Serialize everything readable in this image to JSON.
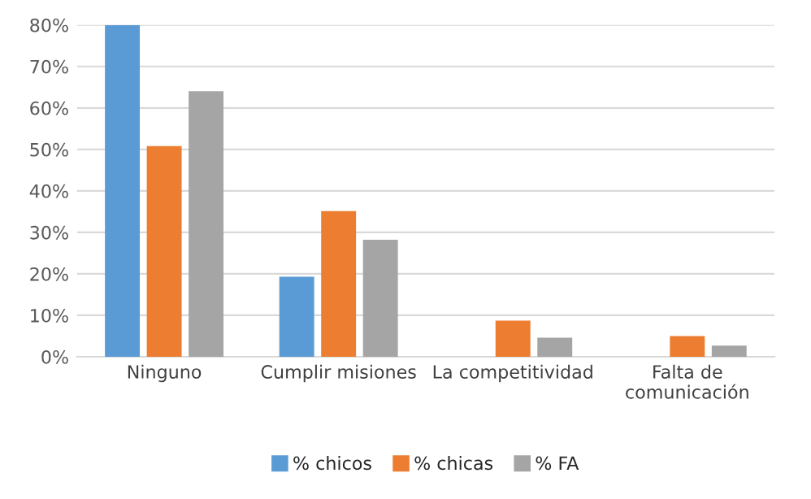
{
  "chart_data": {
    "type": "bar",
    "categories": [
      "Ninguno",
      "Cumplir misiones",
      "La competitividad",
      "Falta de\ncomunicación"
    ],
    "series": [
      {
        "name": "% chicos",
        "color": "#5b9bd5",
        "values": [
          80,
          19.3,
          null,
          null
        ]
      },
      {
        "name": "% chicas",
        "color": "#ed7d31",
        "values": [
          50.8,
          35.1,
          8.7,
          5.0
        ]
      },
      {
        "name": "% FA",
        "color": "#a5a5a5",
        "values": [
          64,
          28.2,
          4.6,
          2.7
        ]
      }
    ],
    "ylim": [
      0,
      80
    ],
    "yticks": [
      {
        "value": 0,
        "label": "0%"
      },
      {
        "value": 10,
        "label": "10%"
      },
      {
        "value": 20,
        "label": "20%"
      },
      {
        "value": 30,
        "label": "30%"
      },
      {
        "value": 40,
        "label": "40%"
      },
      {
        "value": 50,
        "label": "50%"
      },
      {
        "value": 60,
        "label": "60%"
      },
      {
        "value": 70,
        "label": "70%"
      },
      {
        "value": 80,
        "label": "80%"
      }
    ],
    "grid": "y",
    "legend": "bottom"
  }
}
